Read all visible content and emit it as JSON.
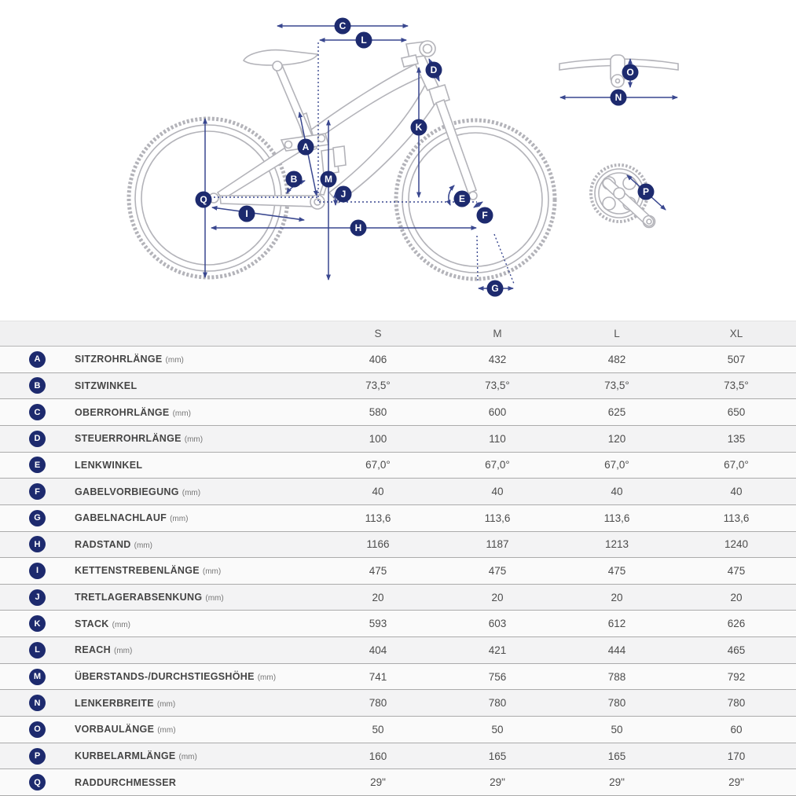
{
  "diagram": {
    "badge_letters": [
      "A",
      "B",
      "C",
      "D",
      "E",
      "F",
      "G",
      "H",
      "I",
      "J",
      "K",
      "L",
      "M",
      "N",
      "O",
      "P",
      "Q"
    ]
  },
  "table": {
    "size_headers": [
      "S",
      "M",
      "L",
      "XL"
    ],
    "rows": [
      {
        "key": "A",
        "label": "SITZROHRLÄNGE",
        "unit": "(mm)",
        "values": [
          "406",
          "432",
          "482",
          "507"
        ]
      },
      {
        "key": "B",
        "label": "SITZWINKEL",
        "unit": "",
        "values": [
          "73,5°",
          "73,5°",
          "73,5°",
          "73,5°"
        ]
      },
      {
        "key": "C",
        "label": "OBERROHRLÄNGE",
        "unit": "(mm)",
        "values": [
          "580",
          "600",
          "625",
          "650"
        ]
      },
      {
        "key": "D",
        "label": "STEUERROHRLÄNGE",
        "unit": "(mm)",
        "values": [
          "100",
          "110",
          "120",
          "135"
        ]
      },
      {
        "key": "E",
        "label": "LENKWINKEL",
        "unit": "",
        "values": [
          "67,0°",
          "67,0°",
          "67,0°",
          "67,0°"
        ]
      },
      {
        "key": "F",
        "label": "GABELVORBIEGUNG",
        "unit": "(mm)",
        "values": [
          "40",
          "40",
          "40",
          "40"
        ]
      },
      {
        "key": "G",
        "label": "GABELNACHLAUF",
        "unit": "(mm)",
        "values": [
          "113,6",
          "113,6",
          "113,6",
          "113,6"
        ]
      },
      {
        "key": "H",
        "label": "RADSTAND",
        "unit": "(mm)",
        "values": [
          "1166",
          "1187",
          "1213",
          "1240"
        ]
      },
      {
        "key": "I",
        "label": "KETTENSTREBENLÄNGE",
        "unit": "(mm)",
        "values": [
          "475",
          "475",
          "475",
          "475"
        ]
      },
      {
        "key": "J",
        "label": "TRETLAGERABSENKUNG",
        "unit": "(mm)",
        "values": [
          "20",
          "20",
          "20",
          "20"
        ]
      },
      {
        "key": "K",
        "label": "STACK",
        "unit": "(mm)",
        "values": [
          "593",
          "603",
          "612",
          "626"
        ]
      },
      {
        "key": "L",
        "label": "REACH",
        "unit": "(mm)",
        "values": [
          "404",
          "421",
          "444",
          "465"
        ]
      },
      {
        "key": "M",
        "label": "ÜBERSTANDS-/DURCHSTIEGSHÖHE",
        "unit": "(mm)",
        "values": [
          "741",
          "756",
          "788",
          "792"
        ]
      },
      {
        "key": "N",
        "label": "LENKERBREITE",
        "unit": "(mm)",
        "values": [
          "780",
          "780",
          "780",
          "780"
        ]
      },
      {
        "key": "O",
        "label": "VORBAULÄNGE",
        "unit": "(mm)",
        "values": [
          "50",
          "50",
          "50",
          "60"
        ]
      },
      {
        "key": "P",
        "label": "KURBELARMLÄNGE",
        "unit": "(mm)",
        "values": [
          "160",
          "165",
          "165",
          "170"
        ]
      },
      {
        "key": "Q",
        "label": "RADDURCHMESSER",
        "unit": "",
        "values": [
          "29\"",
          "29\"",
          "29\"",
          "29\""
        ]
      }
    ]
  },
  "colors": {
    "badge_navy": "#1d2a6e",
    "arrow_navy": "#39478f",
    "frame_gray": "#b3b3b9"
  }
}
